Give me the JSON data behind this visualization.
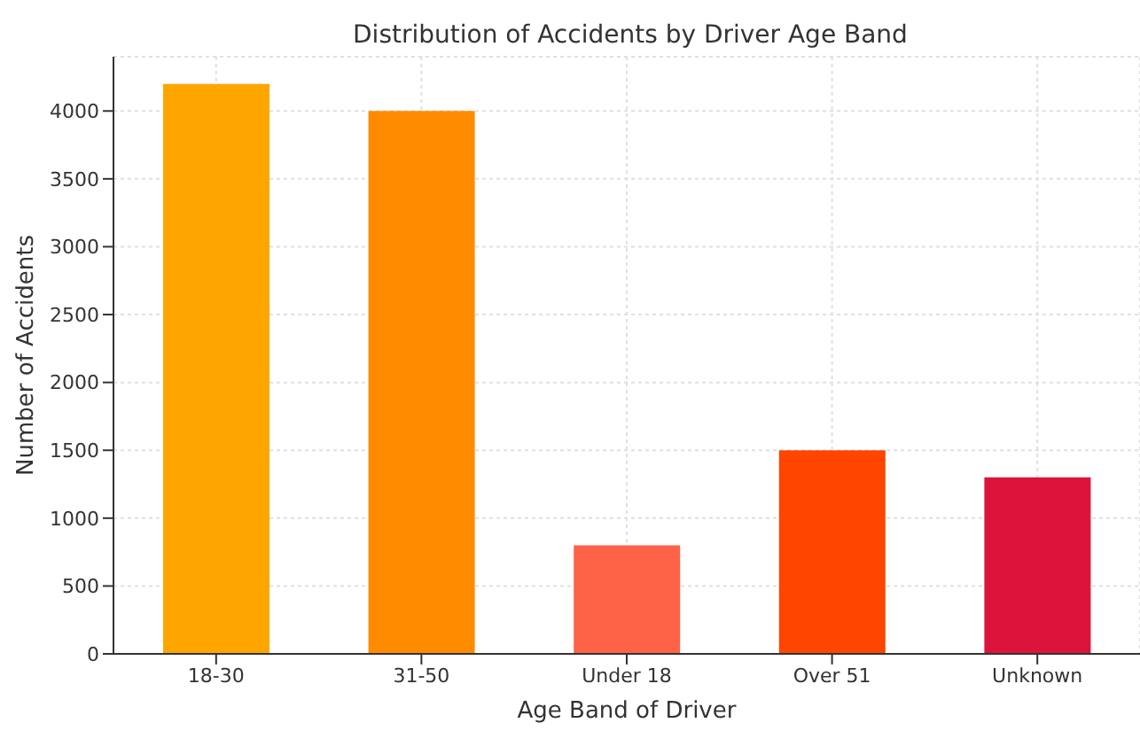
{
  "chart_data": {
    "type": "bar",
    "title": "Distribution of Accidents by Driver Age Band",
    "xlabel": "Age Band of Driver",
    "ylabel": "Number of Accidents",
    "categories": [
      "18-30",
      "31-50",
      "Under 18",
      "Over 51",
      "Unknown"
    ],
    "values": [
      4200,
      4000,
      800,
      1500,
      1300
    ],
    "colors": [
      "#ffa500",
      "#ff8c00",
      "#ff6347",
      "#ff4500",
      "#dc143c"
    ],
    "ylim": [
      0,
      4400
    ],
    "yticks": [
      0,
      500,
      1000,
      1500,
      2000,
      2500,
      3000,
      3500,
      4000
    ],
    "grid": true
  }
}
